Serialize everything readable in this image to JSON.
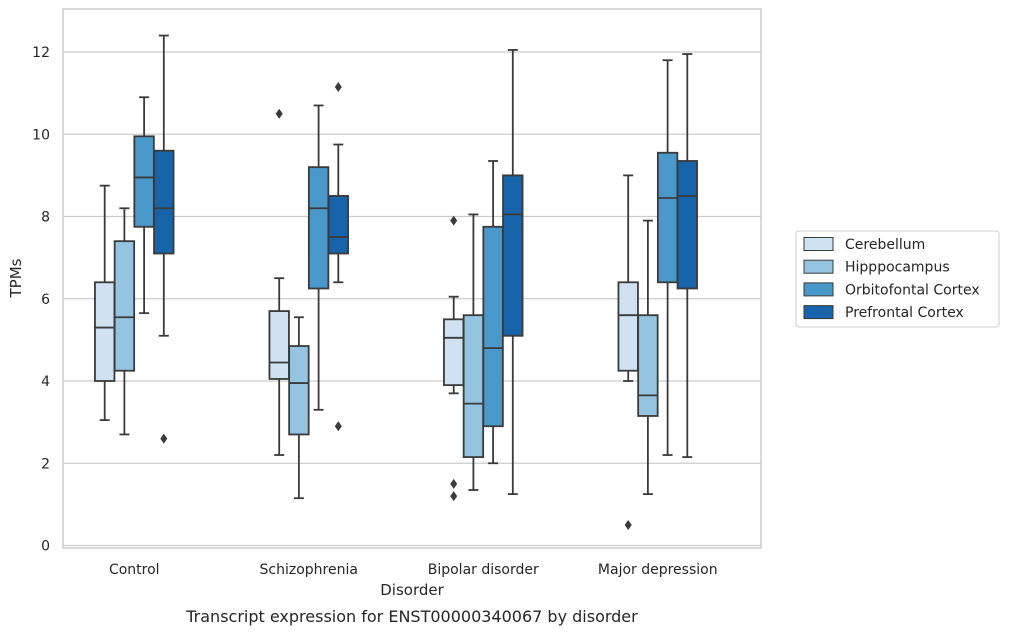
{
  "chart_data": {
    "type": "box",
    "title": "",
    "caption": "Transcript expression for ENST00000340067 by disorder",
    "xlabel": "Disorder",
    "ylabel": "TPMs",
    "ylim": [
      -0.1,
      13
    ],
    "yticks": [
      0,
      2,
      4,
      6,
      8,
      10,
      12
    ],
    "grid": "horizontal",
    "legend_position": "right",
    "categories": [
      "Control",
      "Schizophrenia",
      "Bipolar disorder",
      "Major depression"
    ],
    "series": [
      {
        "name": "Cerebellum",
        "color": "#d0e1f2",
        "boxes": [
          {
            "whisker_low": 3.05,
            "q1": 4.0,
            "median": 5.3,
            "q3": 6.4,
            "whisker_high": 8.75,
            "outliers": []
          },
          {
            "whisker_low": 2.2,
            "q1": 4.05,
            "median": 4.45,
            "q3": 5.7,
            "whisker_high": 6.5,
            "outliers": [
              10.5
            ]
          },
          {
            "whisker_low": 3.7,
            "q1": 3.9,
            "median": 5.05,
            "q3": 5.5,
            "whisker_high": 6.05,
            "outliers": [
              7.9,
              1.5,
              1.2
            ]
          },
          {
            "whisker_low": 4.0,
            "q1": 4.25,
            "median": 5.6,
            "q3": 6.4,
            "whisker_high": 9.0,
            "outliers": [
              0.5
            ]
          }
        ]
      },
      {
        "name": "Hipppocampus",
        "color": "#94c4df",
        "boxes": [
          {
            "whisker_low": 2.7,
            "q1": 4.25,
            "median": 5.55,
            "q3": 7.4,
            "whisker_high": 8.2,
            "outliers": []
          },
          {
            "whisker_low": 1.15,
            "q1": 2.7,
            "median": 3.95,
            "q3": 4.85,
            "whisker_high": 5.55,
            "outliers": []
          },
          {
            "whisker_low": 1.35,
            "q1": 2.15,
            "median": 3.45,
            "q3": 5.6,
            "whisker_high": 8.05,
            "outliers": []
          },
          {
            "whisker_low": 1.25,
            "q1": 3.15,
            "median": 3.65,
            "q3": 5.6,
            "whisker_high": 7.9,
            "outliers": []
          }
        ]
      },
      {
        "name": "Orbitofontal Cortex",
        "color": "#4a98c9",
        "boxes": [
          {
            "whisker_low": 5.65,
            "q1": 7.75,
            "median": 8.95,
            "q3": 9.95,
            "whisker_high": 10.9,
            "outliers": []
          },
          {
            "whisker_low": 3.3,
            "q1": 6.25,
            "median": 8.2,
            "q3": 9.2,
            "whisker_high": 10.7,
            "outliers": []
          },
          {
            "whisker_low": 2.0,
            "q1": 2.9,
            "median": 4.8,
            "q3": 7.75,
            "whisker_high": 9.35,
            "outliers": []
          },
          {
            "whisker_low": 2.2,
            "q1": 6.4,
            "median": 8.45,
            "q3": 9.55,
            "whisker_high": 11.8,
            "outliers": []
          }
        ]
      },
      {
        "name": "Prefrontal Cortex",
        "color": "#1764ab",
        "boxes": [
          {
            "whisker_low": 5.1,
            "q1": 7.1,
            "median": 8.2,
            "q3": 9.6,
            "whisker_high": 12.4,
            "outliers": [
              2.6
            ]
          },
          {
            "whisker_low": 6.4,
            "q1": 7.1,
            "median": 7.5,
            "q3": 8.5,
            "whisker_high": 9.75,
            "outliers": [
              11.15,
              2.9
            ]
          },
          {
            "whisker_low": 1.25,
            "q1": 5.1,
            "median": 8.05,
            "q3": 9.0,
            "whisker_high": 12.05,
            "outliers": []
          },
          {
            "whisker_low": 2.15,
            "q1": 6.25,
            "median": 8.5,
            "q3": 9.35,
            "whisker_high": 11.95,
            "outliers": []
          }
        ]
      }
    ]
  }
}
